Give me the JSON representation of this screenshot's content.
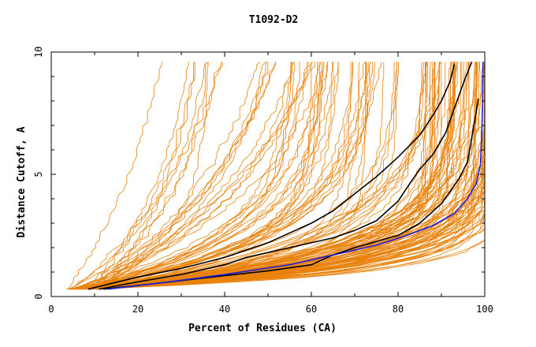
{
  "chart_data": {
    "type": "line",
    "title": "T1092-D2",
    "xlabel": "Percent of Residues (CA)",
    "ylabel": "Distance Cutoff, A",
    "xlim": [
      0,
      100
    ],
    "ylim": [
      0,
      10
    ],
    "x_ticks": [
      0,
      20,
      40,
      60,
      80,
      100
    ],
    "x_tick_labels": [
      "0",
      "20",
      "40",
      "60",
      "80",
      "100"
    ],
    "y_ticks": [
      0,
      5,
      10
    ],
    "y_tick_labels": [
      "0",
      "5",
      "10"
    ],
    "grid": false,
    "legend": "none",
    "colors": {
      "models": "#E8820C",
      "highlight_black": "#000000",
      "highlight_blue": "#1F1FE0",
      "axes": "#000000"
    },
    "series": [
      {
        "color": "#000000",
        "points": [
          [
            8.5,
            0.3
          ],
          [
            20,
            0.8
          ],
          [
            30,
            1.15
          ],
          [
            40,
            1.6
          ],
          [
            50,
            2.2
          ],
          [
            60,
            3.0
          ],
          [
            65,
            3.5
          ],
          [
            70,
            4.2
          ],
          [
            75,
            4.9
          ],
          [
            80,
            5.7
          ],
          [
            85,
            6.6
          ],
          [
            88,
            7.4
          ],
          [
            90,
            8.0
          ],
          [
            92,
            8.8
          ],
          [
            93,
            9.5
          ]
        ]
      },
      {
        "color": "#000000",
        "points": [
          [
            11,
            0.3
          ],
          [
            20,
            0.6
          ],
          [
            30,
            0.9
          ],
          [
            40,
            1.3
          ],
          [
            45,
            1.6
          ],
          [
            55,
            2.0
          ],
          [
            65,
            2.4
          ],
          [
            70,
            2.7
          ],
          [
            75,
            3.1
          ],
          [
            80,
            3.9
          ],
          [
            83,
            4.7
          ],
          [
            85,
            5.2
          ],
          [
            88,
            5.8
          ],
          [
            91,
            6.7
          ],
          [
            93,
            7.7
          ],
          [
            95,
            8.7
          ],
          [
            97,
            9.6
          ]
        ]
      },
      {
        "color": "#000000",
        "points": [
          [
            12,
            0.3
          ],
          [
            25,
            0.55
          ],
          [
            40,
            0.85
          ],
          [
            50,
            1.05
          ],
          [
            60,
            1.3
          ],
          [
            65,
            1.7
          ],
          [
            70,
            2.0
          ],
          [
            80,
            2.5
          ],
          [
            85,
            3.0
          ],
          [
            90,
            3.8
          ],
          [
            94,
            4.8
          ],
          [
            96,
            5.5
          ],
          [
            97,
            6.5
          ],
          [
            98,
            7.5
          ],
          [
            98.5,
            8.1
          ]
        ]
      },
      {
        "color": "#1F1FE0",
        "points": [
          [
            13,
            0.3
          ],
          [
            25,
            0.55
          ],
          [
            40,
            0.9
          ],
          [
            55,
            1.3
          ],
          [
            65,
            1.7
          ],
          [
            75,
            2.1
          ],
          [
            82,
            2.5
          ],
          [
            88,
            2.9
          ],
          [
            93,
            3.4
          ],
          [
            96,
            4.0
          ],
          [
            98,
            4.6
          ],
          [
            99,
            5.4
          ],
          [
            99.3,
            6.5
          ],
          [
            99.5,
            8.0
          ],
          [
            99.6,
            9.6
          ]
        ]
      }
    ]
  }
}
